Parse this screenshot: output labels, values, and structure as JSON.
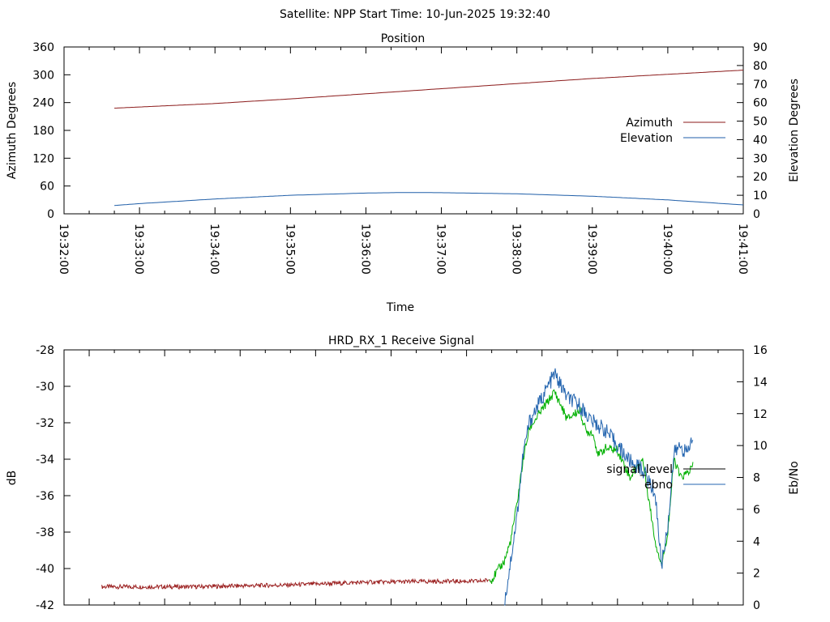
{
  "header": {
    "text": "Satellite: NPP    Start Time: 10-Jun-2025 19:32:40"
  },
  "colors": {
    "azimuth": "#8b1a1a",
    "elevation": "#1f5ea8",
    "signal_level": "#000000",
    "ebno": "#2566b0",
    "signal_red": "#9b2020",
    "signal_green": "#00b000"
  },
  "chart_data": [
    {
      "type": "line",
      "title": "Position",
      "xlabel": "Time",
      "ylabel": "Azimuth Degrees",
      "y2label": "Elevation Degrees",
      "xlim": [
        "19:32:00",
        "19:41:00"
      ],
      "ylim": [
        0,
        360
      ],
      "y2lim": [
        0,
        90
      ],
      "x_ticks": [
        "19:32:00",
        "19:33:00",
        "19:34:00",
        "19:35:00",
        "19:36:00",
        "19:37:00",
        "19:38:00",
        "19:39:00",
        "19:40:00",
        "19:41:00"
      ],
      "y_ticks": [
        "0",
        "60",
        "120",
        "180",
        "240",
        "300",
        "360"
      ],
      "y2_ticks": [
        "0",
        "10",
        "20",
        "30",
        "40",
        "50",
        "60",
        "70",
        "80",
        "90"
      ],
      "legend_position": "right",
      "series": [
        {
          "name": "Azimuth",
          "axis": "y",
          "x": [
            "19:32:40",
            "19:34:00",
            "19:35:00",
            "19:36:00",
            "19:37:00",
            "19:38:00",
            "19:39:00",
            "19:40:00",
            "19:41:00"
          ],
          "values": [
            228,
            238,
            248,
            259,
            270,
            281,
            292,
            301,
            310
          ]
        },
        {
          "name": "Elevation",
          "axis": "y2",
          "x": [
            "19:32:40",
            "19:33:00",
            "19:34:00",
            "19:35:00",
            "19:36:00",
            "19:36:30",
            "19:37:00",
            "19:38:00",
            "19:39:00",
            "19:40:00",
            "19:41:00"
          ],
          "values": [
            4.5,
            5.5,
            8,
            10,
            11.2,
            11.5,
            11.4,
            10.8,
            9.5,
            7.5,
            4.8
          ]
        }
      ]
    },
    {
      "type": "line",
      "title": "HRD_RX_1 Receive Signal",
      "ylabel": "dB",
      "y2label": "Eb/No",
      "ylim": [
        -42,
        -28
      ],
      "y2lim": [
        0,
        16
      ],
      "y_ticks": [
        "-28",
        "-30",
        "-32",
        "-34",
        "-36",
        "-38",
        "-40",
        "-42"
      ],
      "y2_ticks": [
        "0",
        "2",
        "4",
        "6",
        "8",
        "10",
        "12",
        "14",
        "16"
      ],
      "legend_position": "right",
      "x_range_seconds": [
        0,
        540
      ],
      "series": [
        {
          "name": "signal_level",
          "axis": "y",
          "x": [
            30,
            100,
            180,
            240,
            300,
            330,
            340,
            345,
            350,
            355,
            360,
            365,
            370,
            380,
            390,
            400,
            410,
            415,
            420,
            425,
            430,
            440,
            450,
            460,
            470,
            475,
            480,
            485,
            490,
            495,
            500
          ],
          "values": [
            -41.0,
            -41.0,
            -40.9,
            -40.75,
            -40.7,
            -40.7,
            -40.6,
            -40.1,
            -39.6,
            -38.5,
            -36.5,
            -34.0,
            -32.3,
            -31.3,
            -30.3,
            -31.8,
            -31.3,
            -32.5,
            -32.5,
            -33.8,
            -33.4,
            -33.5,
            -35.0,
            -34.0,
            -38.5,
            -39.8,
            -38.0,
            -34.0,
            -35.0,
            -34.8,
            -34.4
          ]
        },
        {
          "name": "ebno",
          "axis": "y2",
          "x": [
            350,
            360,
            365,
            370,
            380,
            390,
            400,
            410,
            420,
            430,
            440,
            450,
            460,
            470,
            475,
            480,
            485,
            490,
            495,
            500
          ],
          "values": [
            0,
            5.5,
            9.5,
            11.5,
            13.0,
            14.5,
            13.0,
            12.5,
            11.5,
            11.0,
            10.0,
            9.0,
            8.5,
            7.0,
            2.5,
            5.0,
            9.5,
            10.0,
            9.5,
            10.5
          ]
        }
      ]
    }
  ]
}
